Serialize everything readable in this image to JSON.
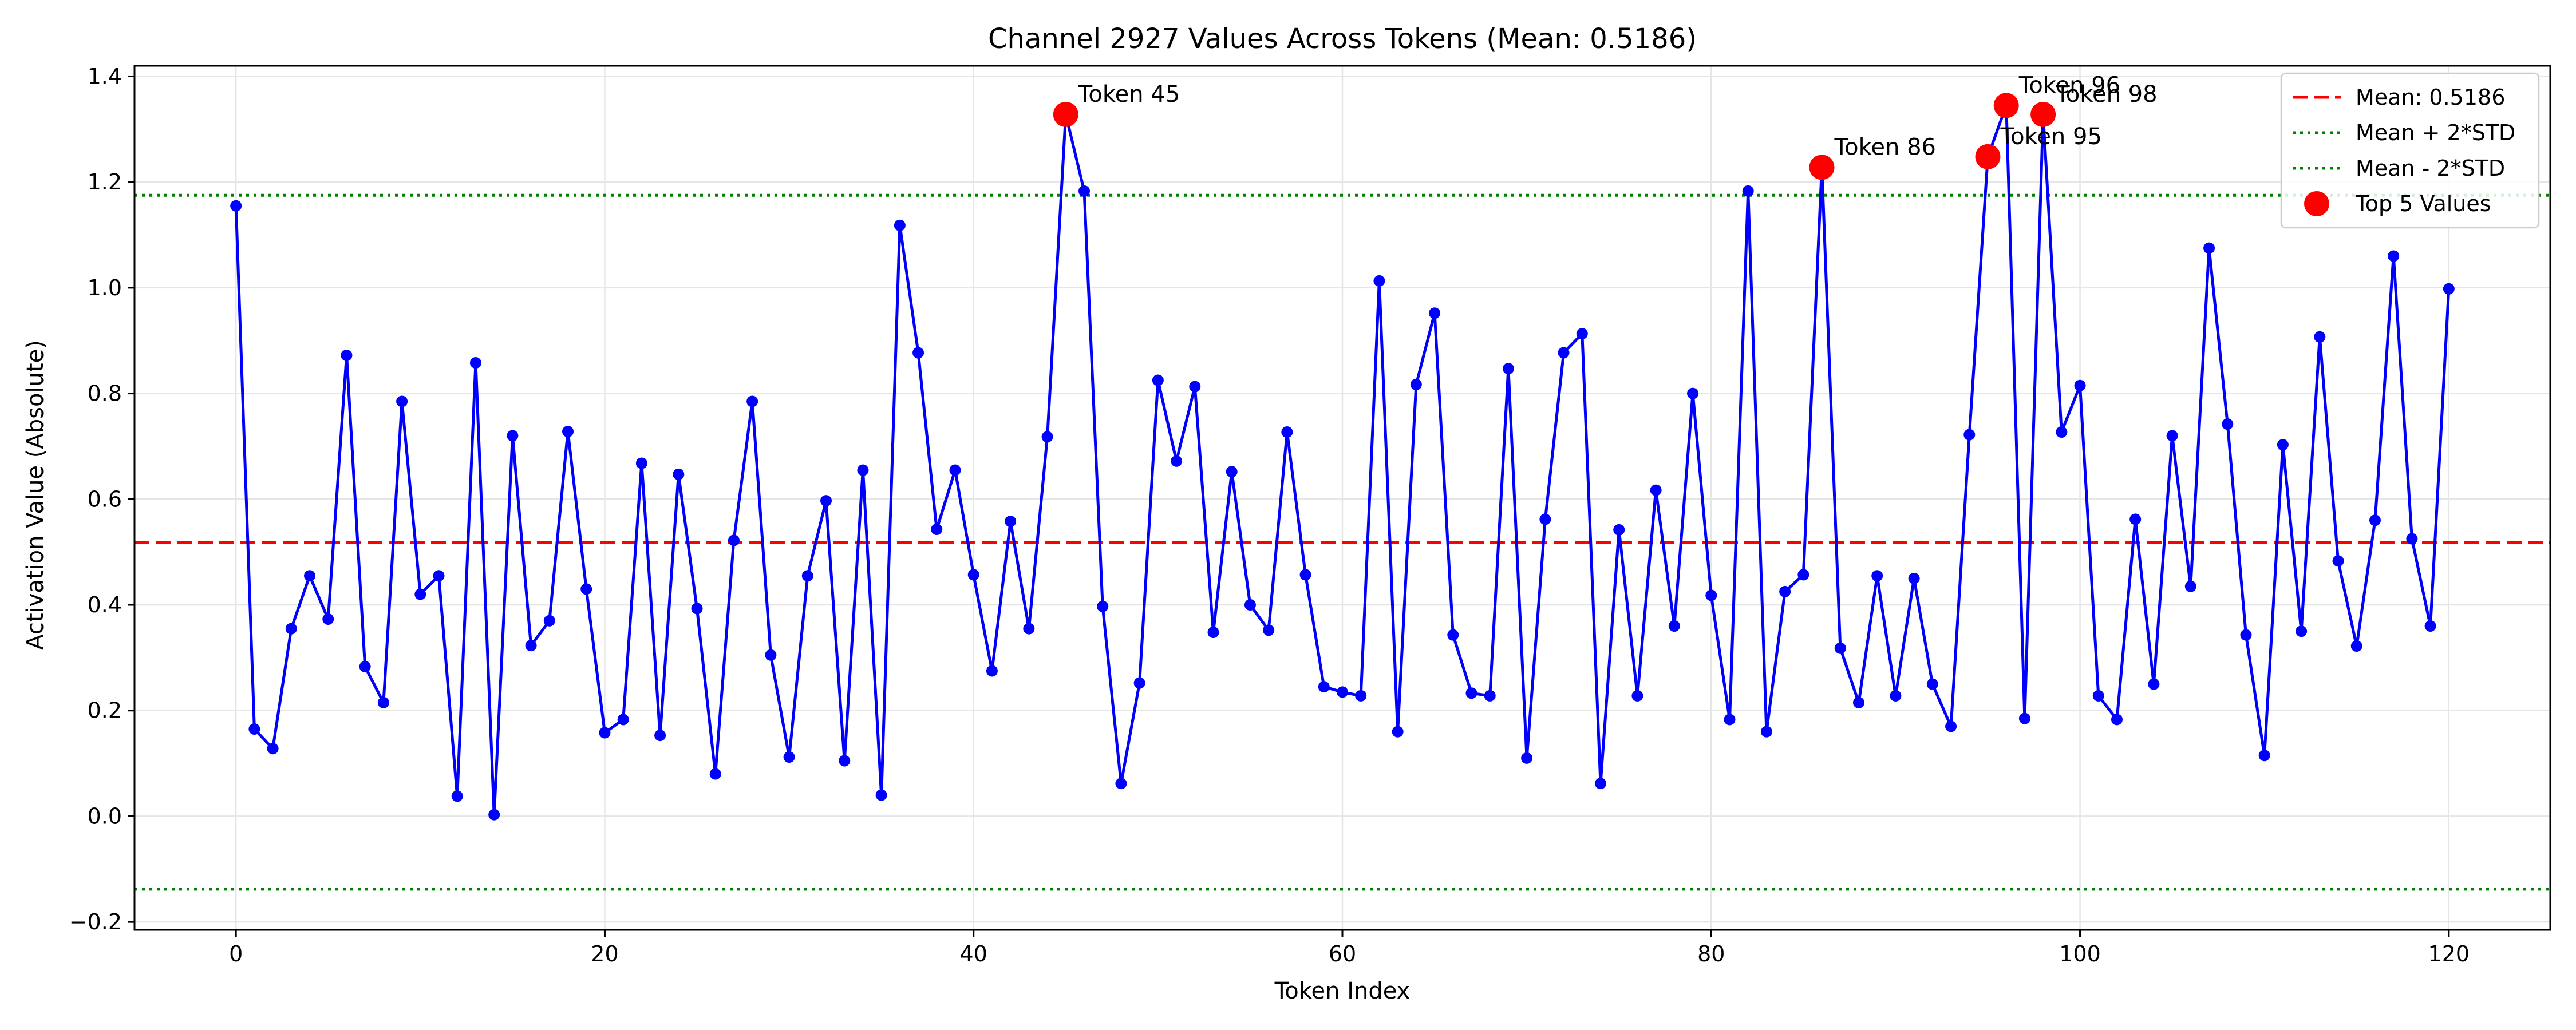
{
  "chart_data": {
    "type": "line",
    "title": "Channel 2927 Values Across Tokens (Mean: 0.5186)",
    "xlabel": "Token Index",
    "ylabel": "Activation Value (Absolute)",
    "xlim": [
      -5.5,
      125.5
    ],
    "ylim": [
      -0.215,
      1.42
    ],
    "xticks": [
      0,
      20,
      40,
      60,
      80,
      100,
      120
    ],
    "yticks": [
      -0.2,
      0.0,
      0.2,
      0.4,
      0.6,
      0.8,
      1.0,
      1.2,
      1.4
    ],
    "xtick_labels": [
      "0",
      "20",
      "40",
      "60",
      "80",
      "100",
      "120"
    ],
    "ytick_labels": [
      "−0.2",
      "0.0",
      "0.2",
      "0.4",
      "0.6",
      "0.8",
      "1.0",
      "1.2",
      "1.4"
    ],
    "grid": true,
    "legend_position": "top-right",
    "colors": {
      "series": "#0000ff",
      "mean": "#ff0000",
      "std": "#008000",
      "top": "#ff0000",
      "grid": "#e6e6e6"
    },
    "series": [
      {
        "values": [
          1.155,
          0.165,
          0.128,
          0.355,
          0.455,
          0.373,
          0.872,
          0.283,
          0.215,
          0.785,
          0.42,
          0.455,
          0.038,
          0.858,
          0.003,
          0.72,
          0.323,
          0.37,
          0.728,
          0.43,
          0.158,
          0.183,
          0.668,
          0.153,
          0.647,
          0.393,
          0.08,
          0.522,
          0.785,
          0.305,
          0.112,
          0.455,
          0.597,
          0.105,
          0.655,
          0.04,
          1.118,
          0.877,
          0.543,
          0.655,
          0.457,
          0.275,
          0.558,
          0.355,
          0.718,
          1.328,
          1.183,
          0.397,
          0.062,
          0.252,
          0.825,
          0.672,
          0.813,
          0.348,
          0.652,
          0.4,
          0.352,
          0.727,
          0.457,
          0.245,
          0.235,
          0.228,
          1.013,
          0.16,
          0.817,
          0.952,
          0.343,
          0.233,
          0.228,
          0.847,
          0.11,
          0.562,
          0.877,
          0.913,
          0.062,
          0.542,
          0.228,
          0.617,
          0.36,
          0.8,
          0.418,
          0.183,
          1.183,
          0.16,
          0.425,
          0.457,
          1.228,
          0.318,
          0.215,
          0.455,
          0.228,
          0.45,
          0.25,
          0.17,
          0.722,
          1.248,
          1.345,
          0.185,
          1.328,
          0.727,
          0.815,
          0.228,
          0.183,
          0.562,
          0.25,
          0.72,
          0.435,
          1.075,
          0.742,
          0.343,
          0.115,
          0.703,
          0.35,
          0.907,
          0.483,
          0.322,
          0.56,
          1.06,
          0.525,
          0.36,
          0.998
        ]
      }
    ],
    "mean": 0.5186,
    "mean_plus_2std": 1.175,
    "mean_minus_2std": -0.138,
    "top5": [
      {
        "x": 45,
        "y": 1.328,
        "label": "Token 45"
      },
      {
        "x": 86,
        "y": 1.228,
        "label": "Token 86"
      },
      {
        "x": 95,
        "y": 1.248,
        "label": "Token 95"
      },
      {
        "x": 96,
        "y": 1.345,
        "label": "Token 96"
      },
      {
        "x": 98,
        "y": 1.328,
        "label": "Token 98"
      }
    ],
    "legend": [
      {
        "label": "Mean: 0.5186",
        "style": "dashed-red"
      },
      {
        "label": "Mean + 2*STD",
        "style": "dotted-green"
      },
      {
        "label": "Mean - 2*STD",
        "style": "dotted-green"
      },
      {
        "label": "Top 5 Values",
        "style": "red-dot"
      }
    ]
  }
}
